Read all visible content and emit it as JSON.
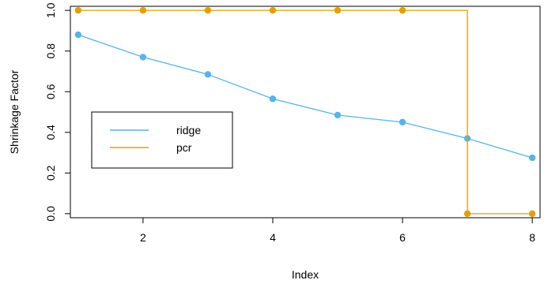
{
  "chart_data": {
    "type": "line",
    "title": "",
    "xlabel": "Index",
    "ylabel": "Shrinkage Factor",
    "xlim": [
      0.88,
      8.12
    ],
    "ylim": [
      -0.02,
      1.02
    ],
    "x_ticks": [
      2,
      4,
      6,
      8
    ],
    "y_ticks": [
      0.0,
      0.2,
      0.4,
      0.6,
      0.8,
      1.0
    ],
    "grid": false,
    "legend_position": "middle-left",
    "series": [
      {
        "name": "ridge",
        "color": "#56b4e9",
        "step": false,
        "x": [
          1,
          2,
          3,
          4,
          5,
          6,
          7,
          8
        ],
        "y": [
          0.88,
          0.77,
          0.685,
          0.565,
          0.485,
          0.45,
          0.37,
          0.275
        ]
      },
      {
        "name": "pcr",
        "color": "#e69f00",
        "step": true,
        "x": [
          1,
          2,
          3,
          4,
          5,
          6,
          7,
          8
        ],
        "y": [
          1,
          1,
          1,
          1,
          1,
          1,
          0,
          0
        ]
      }
    ]
  }
}
